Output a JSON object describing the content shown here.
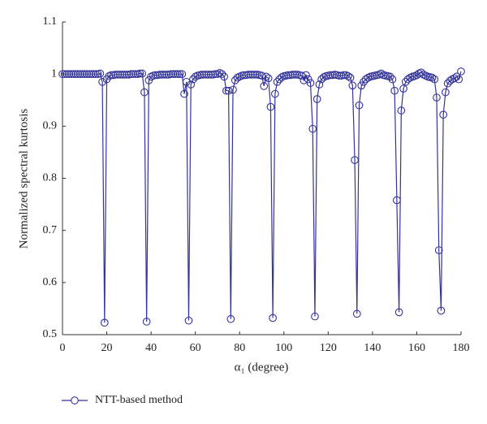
{
  "chart_data": {
    "type": "line",
    "xlabel": "α₁ (degree)",
    "ylabel": "Normalized spectral kurtosis",
    "xlim": [
      0,
      180
    ],
    "xticks": [
      0,
      20,
      40,
      60,
      80,
      100,
      120,
      140,
      160,
      180
    ],
    "ylim": [
      0.5,
      1.1
    ],
    "yticks": [
      0.5,
      0.6,
      0.7,
      0.8,
      0.9,
      1,
      1.1
    ],
    "legend": "bottom-left",
    "x": [
      0,
      1,
      2,
      3,
      4,
      5,
      6,
      7,
      8,
      9,
      10,
      11,
      12,
      13,
      14,
      15,
      16,
      17,
      18,
      19,
      20,
      21,
      22,
      23,
      24,
      25,
      26,
      27,
      28,
      29,
      30,
      31,
      32,
      33,
      34,
      35,
      36,
      37,
      38,
      39,
      40,
      41,
      42,
      43,
      44,
      45,
      46,
      47,
      48,
      49,
      50,
      51,
      52,
      53,
      54,
      55,
      56,
      57,
      58,
      59,
      60,
      61,
      62,
      63,
      64,
      65,
      66,
      67,
      68,
      69,
      70,
      71,
      72,
      73,
      74,
      75,
      76,
      77,
      78,
      79,
      80,
      81,
      82,
      83,
      84,
      85,
      86,
      87,
      88,
      89,
      90,
      91,
      92,
      93,
      94,
      95,
      96,
      97,
      98,
      99,
      100,
      101,
      102,
      103,
      104,
      105,
      106,
      107,
      108,
      109,
      110,
      111,
      112,
      113,
      114,
      115,
      116,
      117,
      118,
      119,
      120,
      121,
      122,
      123,
      124,
      125,
      126,
      127,
      128,
      129,
      130,
      131,
      132,
      133,
      134,
      135,
      136,
      137,
      138,
      139,
      140,
      141,
      142,
      143,
      144,
      145,
      146,
      147,
      148,
      149,
      150,
      151,
      152,
      153,
      154,
      155,
      156,
      157,
      158,
      159,
      160,
      161,
      162,
      163,
      164,
      165,
      166,
      167,
      168,
      169,
      170,
      171,
      172,
      173,
      174,
      175,
      176,
      177,
      178,
      179,
      180
    ],
    "series": [
      {
        "name": "NTT-based method",
        "color": "#33339a",
        "values": [
          1,
          1,
          1,
          1,
          1,
          1,
          1,
          1,
          1,
          1,
          1,
          1,
          1,
          1,
          1,
          1,
          1,
          1.001,
          0.985,
          0.523,
          0.99,
          0.996,
          0.998,
          0.998,
          0.999,
          0.999,
          0.999,
          0.999,
          0.999,
          0.999,
          0.999,
          1,
          1,
          1,
          1,
          1.001,
          1.001,
          0.965,
          0.525,
          0.988,
          0.995,
          0.997,
          0.998,
          0.998,
          0.999,
          0.999,
          0.999,
          0.999,
          0.999,
          1,
          1,
          1,
          1,
          1,
          1,
          0.962,
          0.985,
          0.527,
          0.98,
          0.99,
          0.995,
          0.997,
          0.998,
          0.999,
          0.999,
          0.999,
          0.999,
          0.999,
          0.999,
          1,
          1,
          1.002,
          1,
          0.995,
          0.968,
          0.968,
          0.53,
          0.97,
          0.988,
          0.993,
          0.995,
          0.997,
          0.998,
          0.998,
          0.999,
          0.999,
          0.999,
          0.999,
          0.999,
          0.998,
          0.997,
          0.977,
          0.995,
          0.992,
          0.937,
          0.532,
          0.962,
          0.985,
          0.99,
          0.994,
          0.996,
          0.997,
          0.998,
          0.998,
          0.999,
          0.999,
          0.999,
          0.998,
          0.997,
          0.988,
          0.998,
          0.99,
          0.983,
          0.895,
          0.535,
          0.952,
          0.98,
          0.99,
          0.994,
          0.996,
          0.997,
          0.998,
          0.998,
          0.999,
          0.998,
          0.997,
          0.997,
          0.998,
          0.998,
          0.996,
          0.993,
          0.978,
          0.835,
          0.54,
          0.94,
          0.978,
          0.985,
          0.99,
          0.993,
          0.995,
          0.996,
          0.997,
          0.998,
          0.999,
          1.001,
          0.998,
          0.997,
          0.996,
          0.995,
          0.99,
          0.968,
          0.758,
          0.543,
          0.93,
          0.972,
          0.985,
          0.99,
          0.993,
          0.995,
          0.996,
          0.998,
          1.001,
          1.003,
          0.999,
          0.997,
          0.995,
          0.994,
          0.993,
          0.99,
          0.955,
          0.662,
          0.546,
          0.922,
          0.965,
          0.982,
          0.987,
          0.99,
          0.992,
          0.995,
          0.99,
          1.005
        ]
      }
    ]
  }
}
